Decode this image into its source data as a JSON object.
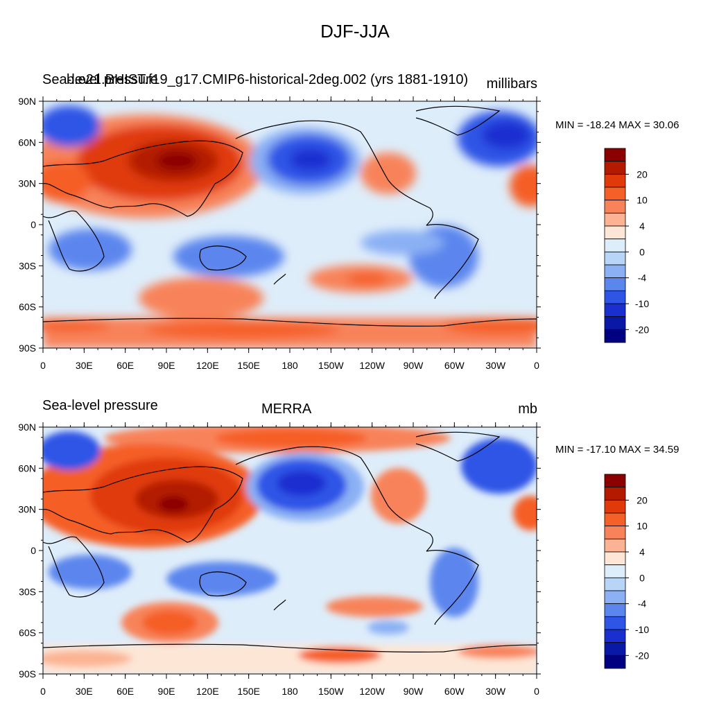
{
  "page_title": "DJF-JJA",
  "panels": [
    {
      "left_label": "Sea-level pressure",
      "overlay_label": "b.e21.BHIST.f19_g17.CMIP6-historical-2deg.002 (yrs 1881-1910)",
      "center_label": "",
      "units": "millibars",
      "minmax": "MIN = -18.24 MAX =  30.06"
    },
    {
      "left_label": "Sea-level pressure",
      "overlay_label": "",
      "center_label": "MERRA",
      "units": "mb",
      "minmax": "MIN = -17.10 MAX =  34.59"
    }
  ],
  "lat_ticks": [
    "90N",
    "60N",
    "30N",
    "0",
    "30S",
    "60S",
    "90S"
  ],
  "lon_ticks": [
    "0",
    "30E",
    "60E",
    "90E",
    "120E",
    "150E",
    "180",
    "150W",
    "120W",
    "90W",
    "60W",
    "30W",
    "0"
  ],
  "colorbar": {
    "colors": [
      "#8b0000",
      "#b41a00",
      "#e03a0a",
      "#f55f28",
      "#f8835a",
      "#fbb393",
      "#fde6d5",
      "#deedfa",
      "#b8d4f6",
      "#8bb0f4",
      "#5b86ee",
      "#2f55e6",
      "#1a2fd0",
      "#0a18a8",
      "#000080"
    ],
    "labels": [
      "20",
      "10",
      "4",
      "0",
      "-4",
      "-10",
      "-20"
    ]
  }
}
